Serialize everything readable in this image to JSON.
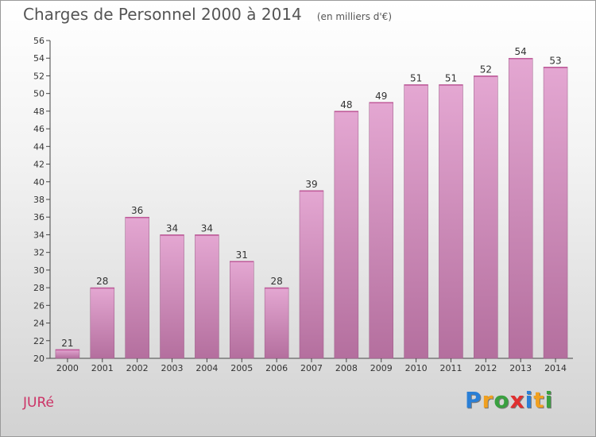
{
  "chart_data": {
    "type": "bar",
    "title": "Charges de Personnel 2000 à 2014",
    "subtitle": "(en milliers d'€)",
    "categories": [
      "2000",
      "2001",
      "2002",
      "2003",
      "2004",
      "2005",
      "2006",
      "2007",
      "2008",
      "2009",
      "2010",
      "2011",
      "2012",
      "2013",
      "2014"
    ],
    "values": [
      21,
      28,
      36,
      34,
      34,
      31,
      28,
      39,
      48,
      49,
      51,
      51,
      52,
      54,
      53
    ],
    "ylim": [
      20,
      56
    ],
    "yticks": [
      20,
      22,
      24,
      26,
      28,
      30,
      32,
      34,
      36,
      38,
      40,
      42,
      44,
      46,
      48,
      50,
      52,
      54,
      56
    ],
    "grid": false,
    "bar_color_top": "#e4a7d2",
    "bar_color_bottom": "#b46f9e"
  },
  "commune": "JURé",
  "logo": {
    "letters": [
      "P",
      "r",
      "o",
      "x",
      "i",
      "t",
      "i"
    ],
    "colors": [
      "#2a7fd6",
      "#f0a020",
      "#3aa040",
      "#e03030",
      "#2a7fd6",
      "#f0a020",
      "#3aa040"
    ]
  }
}
